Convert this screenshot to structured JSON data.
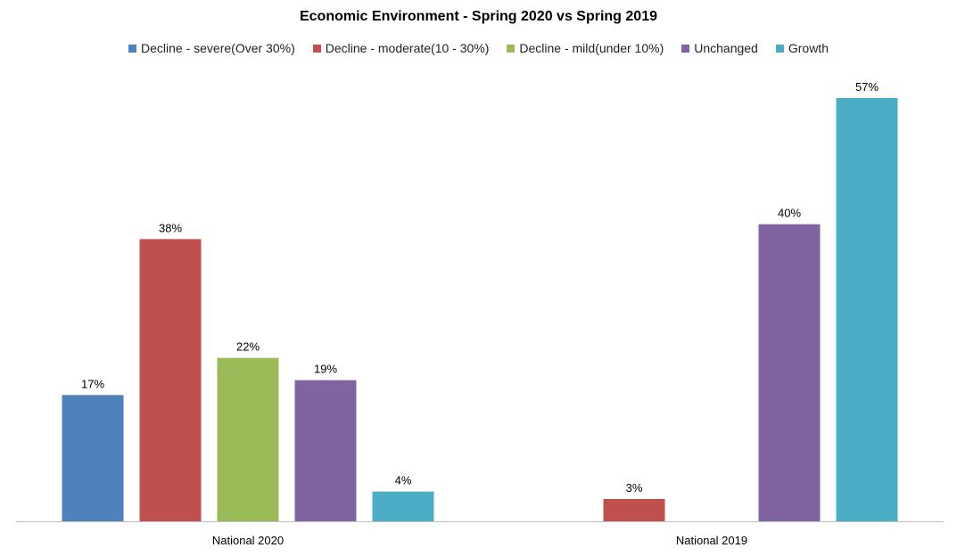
{
  "chart_data": {
    "type": "bar",
    "title": "Economic Environment - Spring 2020 vs Spring 2019",
    "categories": [
      "National 2020",
      "National 2019"
    ],
    "series": [
      {
        "name": "Decline - severe(Over 30%)",
        "color": "#4f81bd",
        "values": [
          17,
          null
        ],
        "labels": [
          "17%",
          ""
        ]
      },
      {
        "name": "Decline - moderate(10 - 30%)",
        "color": "#c0504d",
        "values": [
          38,
          3
        ],
        "labels": [
          "38%",
          "3%"
        ]
      },
      {
        "name": "Decline - mild(under 10%)",
        "color": "#9bbb59",
        "values": [
          22,
          null
        ],
        "labels": [
          "22%",
          ""
        ]
      },
      {
        "name": "Unchanged",
        "color": "#8064a2",
        "values": [
          19,
          40
        ],
        "labels": [
          "19%",
          "40%"
        ]
      },
      {
        "name": "Growth",
        "color": "#4bacc6",
        "values": [
          4,
          57
        ],
        "labels": [
          "4%",
          "57%"
        ]
      }
    ],
    "xlabel": "",
    "ylabel": "",
    "ylim": [
      0,
      57
    ],
    "grid": false,
    "legend_position": "top"
  }
}
